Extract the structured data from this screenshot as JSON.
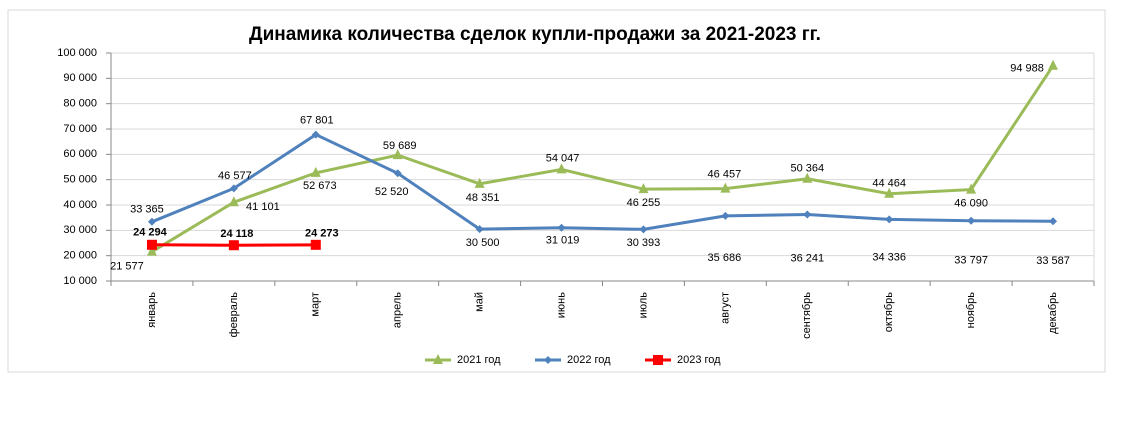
{
  "chart_data": {
    "type": "line",
    "title": "Динамика количества сделок купли-продажи за 2021-2023 гг.",
    "categories": [
      "январь",
      "февраль",
      "март",
      "апрель",
      "май",
      "июнь",
      "июль",
      "август",
      "сентябрь",
      "октябрь",
      "ноябрь",
      "декабрь"
    ],
    "series": [
      {
        "name": "2021 год",
        "color": "#9bbb59",
        "marker": "triangle",
        "values": [
          21577,
          41101,
          52673,
          59689,
          48351,
          54047,
          46255,
          46457,
          50364,
          44464,
          46090,
          94988
        ],
        "value_labels": [
          "21 577",
          "41 101",
          "52 673",
          "59 689",
          "48 351",
          "54 047",
          "46 255",
          "46 457",
          "50 364",
          "44 464",
          "46 090",
          "94 988"
        ]
      },
      {
        "name": "2022 год",
        "color": "#4f81bd",
        "marker": "diamond",
        "values": [
          33365,
          46577,
          67801,
          52520,
          30500,
          31019,
          30393,
          35686,
          36241,
          34336,
          33797,
          33587
        ],
        "value_labels": [
          "33 365",
          "46 577",
          "67 801",
          "52 520",
          "30 500",
          "31 019",
          "30 393",
          "35 686",
          "36 241",
          "34 336",
          "33 797",
          "33 587"
        ]
      },
      {
        "name": "2023 год",
        "color": "#ff0000",
        "marker": "square",
        "values": [
          24294,
          24118,
          24273,
          null,
          null,
          null,
          null,
          null,
          null,
          null,
          null,
          null
        ],
        "value_labels": [
          "24 294",
          "24 118",
          "24 273",
          null,
          null,
          null,
          null,
          null,
          null,
          null,
          null,
          null
        ]
      }
    ],
    "ylim": [
      10000,
      100000
    ],
    "yticks": [
      {
        "value": 10000,
        "label": "10 000"
      },
      {
        "value": 20000,
        "label": "20 000"
      },
      {
        "value": 30000,
        "label": "30 000"
      },
      {
        "value": 40000,
        "label": "40 000"
      },
      {
        "value": 50000,
        "label": "50 000"
      },
      {
        "value": 60000,
        "label": "60 000"
      },
      {
        "value": 70000,
        "label": "70 000"
      },
      {
        "value": 80000,
        "label": "80 000"
      },
      {
        "value": 90000,
        "label": "90 000"
      },
      {
        "value": 100000,
        "label": "100 000"
      }
    ],
    "grid": true,
    "legend": "bottom"
  }
}
